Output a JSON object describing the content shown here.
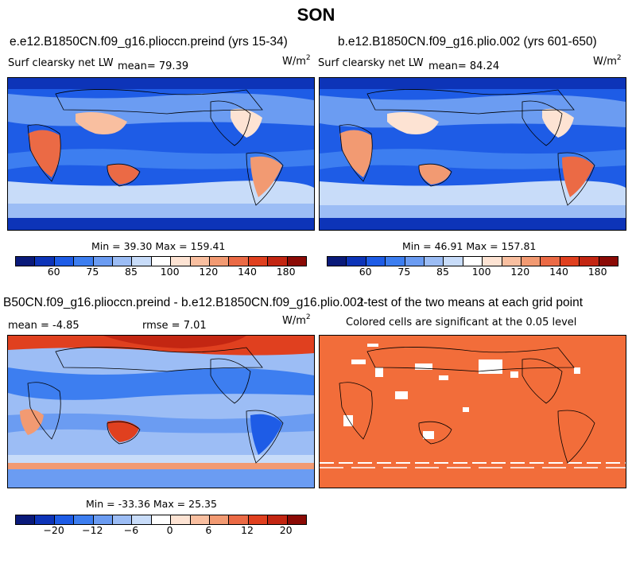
{
  "suptitle": "SON",
  "panels": [
    {
      "title": "e.e12.B1850CN.f09_g16.plioccn.preind (yrs 15-34)",
      "left_label": "Surf clearsky net LW",
      "mean_text": "mean=  79.39",
      "units": "W/m",
      "units_sup": "2",
      "minmax": "Min =  39.30 Max = 159.41",
      "colorbar": {
        "colors": [
          "#0a1a7a",
          "#0d34b8",
          "#1e5ce6",
          "#3d7ef0",
          "#6b9cf2",
          "#9cbdf5",
          "#c8dcf9",
          "#ffffff",
          "#fde3d3",
          "#f9bfa0",
          "#f29a72",
          "#eb6a45",
          "#e0401f",
          "#c32612",
          "#8b0a05"
        ],
        "ticks": [
          "60",
          "75",
          "85",
          "100",
          "120",
          "140",
          "180"
        ]
      }
    },
    {
      "title": "b.e12.B1850CN.f09_g16.plio.002 (yrs 601-650)",
      "left_label": "Surf clearsky net LW",
      "mean_text": "mean=  84.24",
      "units": "W/m",
      "units_sup": "2",
      "minmax": "Min =  46.91 Max = 157.81",
      "colorbar": {
        "colors": [
          "#0a1a7a",
          "#0d34b8",
          "#1e5ce6",
          "#3d7ef0",
          "#6b9cf2",
          "#9cbdf5",
          "#c8dcf9",
          "#ffffff",
          "#fde3d3",
          "#f9bfa0",
          "#f29a72",
          "#eb6a45",
          "#e0401f",
          "#c32612",
          "#8b0a05"
        ],
        "ticks": [
          "60",
          "75",
          "85",
          "100",
          "120",
          "140",
          "180"
        ]
      }
    },
    {
      "title": "B50CN.f09_g16.plioccn.preind - b.e12.B1850CN.f09_g16.plio.002",
      "mean_text": "mean =  -4.85",
      "rmse_text": "rmse =   7.01",
      "units": "W/m",
      "units_sup": "2",
      "minmax": "Min = -33.36 Max =  25.35",
      "colorbar": {
        "colors": [
          "#0a1a7a",
          "#0d34b8",
          "#1e5ce6",
          "#3d7ef0",
          "#6b9cf2",
          "#9cbdf5",
          "#c8dcf9",
          "#ffffff",
          "#fde3d3",
          "#f9bfa0",
          "#f29a72",
          "#eb6a45",
          "#e0401f",
          "#c32612",
          "#8b0a05"
        ],
        "ticks": [
          "-20",
          "-12",
          "-6",
          "0",
          "6",
          "12",
          "20"
        ]
      }
    },
    {
      "title": "t-test of the two means at each grid point",
      "subtitle": "Colored cells are significant at the 0.05 level",
      "fill_color": "#f26d3a"
    }
  ]
}
